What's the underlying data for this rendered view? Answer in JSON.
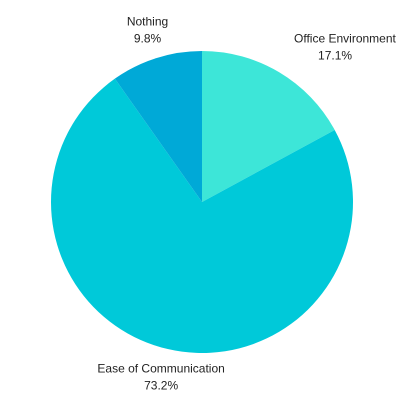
{
  "chart_data": {
    "type": "pie",
    "categories": [
      "Office Environment",
      "Ease of Communication",
      "Nothing"
    ],
    "values": [
      17.1,
      73.2,
      9.8
    ],
    "value_labels": [
      "17.1%",
      "73.2%",
      "9.8%"
    ],
    "colors": [
      "#3de6d8",
      "#00c9d9",
      "#00a9d7"
    ]
  }
}
